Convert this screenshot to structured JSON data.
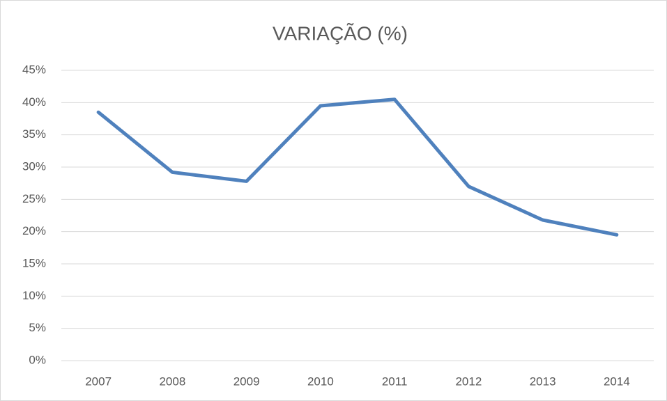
{
  "chart_data": {
    "type": "line",
    "title": "VARIAÇÃO (%)",
    "categories": [
      "2007",
      "2008",
      "2009",
      "2010",
      "2011",
      "2012",
      "2013",
      "2014"
    ],
    "values": [
      38.5,
      29.2,
      27.8,
      39.5,
      40.5,
      27.0,
      21.8,
      19.5
    ],
    "color": "#4f81bd",
    "ylim": [
      0,
      45
    ],
    "yticks": [
      {
        "value": 0,
        "label": "0%"
      },
      {
        "value": 5,
        "label": "5%"
      },
      {
        "value": 10,
        "label": "10%"
      },
      {
        "value": 15,
        "label": "15%"
      },
      {
        "value": 20,
        "label": "20%"
      },
      {
        "value": 25,
        "label": "25%"
      },
      {
        "value": 30,
        "label": "30%"
      },
      {
        "value": 35,
        "label": "35%"
      },
      {
        "value": 40,
        "label": "40%"
      },
      {
        "value": 45,
        "label": "45%"
      }
    ],
    "grid": true
  }
}
